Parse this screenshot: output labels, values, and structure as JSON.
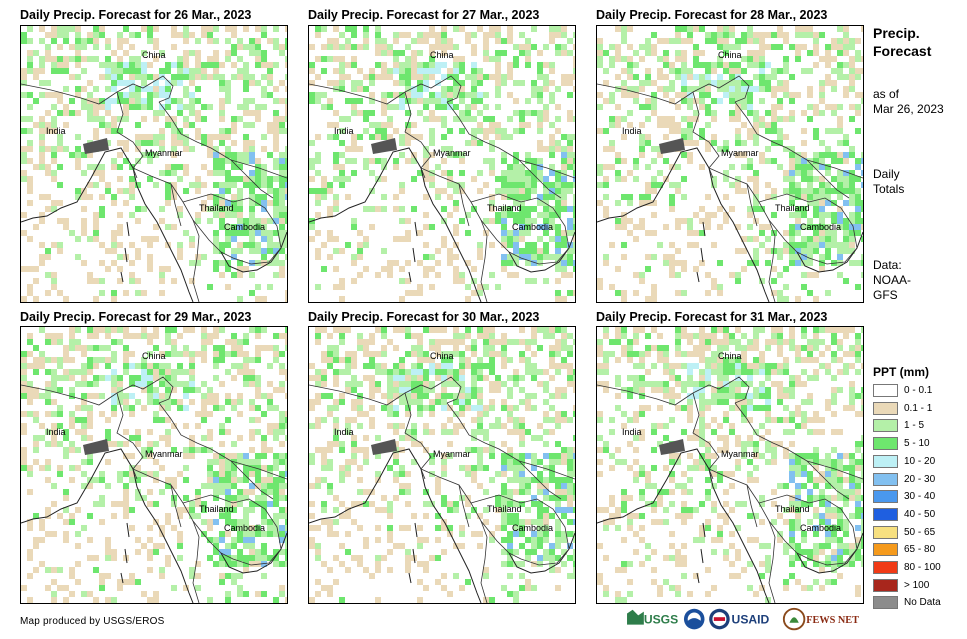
{
  "panels": [
    {
      "title": "Daily Precip. Forecast for 26 Mar., 2023"
    },
    {
      "title": "Daily Precip. Forecast for 27 Mar., 2023"
    },
    {
      "title": "Daily Precip. Forecast for 28 Mar., 2023"
    },
    {
      "title": "Daily Precip. Forecast for 29 Mar., 2023"
    },
    {
      "title": "Daily Precip. Forecast for 30 Mar., 2023"
    },
    {
      "title": "Daily Precip. Forecast for 31 Mar., 2023"
    }
  ],
  "map_labels": {
    "china": "China",
    "india": "India",
    "myanmar": "Myanmar",
    "thailand": "Thailand",
    "cambodia": "Cambodia"
  },
  "sidebar": {
    "title_line1": "Precip.",
    "title_line2": "Forecast",
    "asof_line1": "as of",
    "asof_line2": "Mar 26, 2023",
    "daily_line1": "Daily",
    "daily_line2": "Totals",
    "data_line1": "Data:",
    "data_line2": "NOAA-",
    "data_line3": "GFS"
  },
  "legend": {
    "title": "PPT (mm)",
    "items": [
      {
        "label": "0 - 0.1",
        "color": "#ffffff"
      },
      {
        "label": "0.1 - 1",
        "color": "#ead9b8"
      },
      {
        "label": "1 - 5",
        "color": "#b4f0a8"
      },
      {
        "label": "5 - 10",
        "color": "#6ee66e"
      },
      {
        "label": "10 - 20",
        "color": "#bdf0f5"
      },
      {
        "label": "20 - 30",
        "color": "#82c0f0"
      },
      {
        "label": "30 - 40",
        "color": "#4a98ee"
      },
      {
        "label": "40 - 50",
        "color": "#1f5fe0"
      },
      {
        "label": "50 - 65",
        "color": "#f7e080"
      },
      {
        "label": "65 - 80",
        "color": "#f59a1c"
      },
      {
        "label": "80 - 100",
        "color": "#f03a16"
      },
      {
        "label": "> 100",
        "color": "#a8261c"
      },
      {
        "label": "No Data",
        "color": "#8c8c8c"
      }
    ]
  },
  "footer": {
    "credit": "Map produced by USGS/EROS",
    "logo_usgs": "USGS",
    "logo_usaid": "USAID",
    "logo_fews": "FEWS NET"
  }
}
